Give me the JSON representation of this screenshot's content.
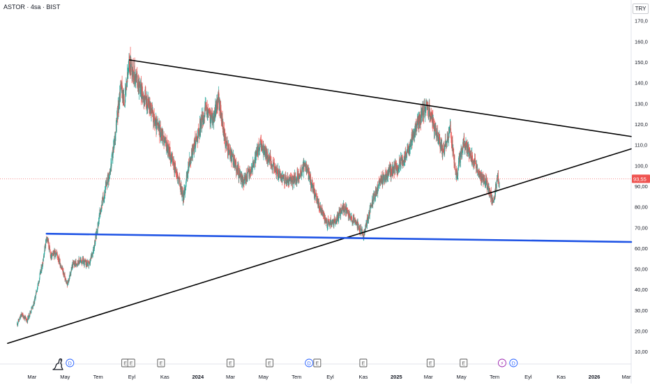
{
  "header": {
    "symbol_title": "ASTOR · 4sa · BIST",
    "currency": "TRY"
  },
  "colors": {
    "up": "#26a69a",
    "down": "#ef5350",
    "trendline": "#000000",
    "support": "#1e53e5",
    "last_price_bg": "#ef5350",
    "axis_text": "#131722",
    "event_E": "#555555",
    "event_D": "#2962ff",
    "event_split": "#9c27b0"
  },
  "chart_data": {
    "type": "candlestick",
    "title": "ASTOR · 4sa · BIST",
    "currency": "TRY",
    "ylim": [
      4,
      180
    ],
    "y_ticks": [
      10,
      20,
      30,
      40,
      50,
      60,
      70,
      80,
      90,
      100,
      110,
      120,
      130,
      140,
      150,
      160,
      170
    ],
    "y_tick_labels": [
      "10,00",
      "20,00",
      "30,00",
      "40,00",
      "50,00",
      "60,00",
      "70,00",
      "80,00",
      "90,00",
      "100,0",
      "110,0",
      "120,0",
      "130,0",
      "140,0",
      "150,0",
      "160,0",
      "170,0"
    ],
    "x_range": [
      "2023-01-01",
      "2026-03-10"
    ],
    "x_ticks": [
      {
        "date": "2023-03-01",
        "label": "Mar"
      },
      {
        "date": "2023-05-01",
        "label": "May"
      },
      {
        "date": "2023-07-01",
        "label": "Tem"
      },
      {
        "date": "2023-09-01",
        "label": "Eyl"
      },
      {
        "date": "2023-11-01",
        "label": "Kas"
      },
      {
        "date": "2024-01-01",
        "label": "2024"
      },
      {
        "date": "2024-03-01",
        "label": "Mar"
      },
      {
        "date": "2024-05-01",
        "label": "May"
      },
      {
        "date": "2024-07-01",
        "label": "Tem"
      },
      {
        "date": "2024-09-01",
        "label": "Eyl"
      },
      {
        "date": "2024-11-01",
        "label": "Kas"
      },
      {
        "date": "2025-01-01",
        "label": "2025"
      },
      {
        "date": "2025-03-01",
        "label": "Mar"
      },
      {
        "date": "2025-05-01",
        "label": "May"
      },
      {
        "date": "2025-07-01",
        "label": "Tem"
      },
      {
        "date": "2025-09-01",
        "label": "Eyl"
      },
      {
        "date": "2025-11-01",
        "label": "Kas"
      },
      {
        "date": "2026-01-01",
        "label": "2026"
      },
      {
        "date": "2026-03-01",
        "label": "Mar"
      }
    ],
    "price_path": [
      {
        "date": "2023-02-01",
        "price": 23
      },
      {
        "date": "2023-02-10",
        "price": 28
      },
      {
        "date": "2023-02-20",
        "price": 25
      },
      {
        "date": "2023-03-05",
        "price": 34
      },
      {
        "date": "2023-03-20",
        "price": 52
      },
      {
        "date": "2023-03-28",
        "price": 66
      },
      {
        "date": "2023-04-05",
        "price": 56
      },
      {
        "date": "2023-04-15",
        "price": 58
      },
      {
        "date": "2023-04-28",
        "price": 48
      },
      {
        "date": "2023-05-05",
        "price": 42
      },
      {
        "date": "2023-05-15",
        "price": 52
      },
      {
        "date": "2023-05-30",
        "price": 54
      },
      {
        "date": "2023-06-15",
        "price": 52
      },
      {
        "date": "2023-06-25",
        "price": 63
      },
      {
        "date": "2023-07-05",
        "price": 78
      },
      {
        "date": "2023-07-12",
        "price": 86
      },
      {
        "date": "2023-07-25",
        "price": 100
      },
      {
        "date": "2023-08-03",
        "price": 118
      },
      {
        "date": "2023-08-12",
        "price": 140
      },
      {
        "date": "2023-08-18",
        "price": 130
      },
      {
        "date": "2023-08-28",
        "price": 150
      },
      {
        "date": "2023-09-10",
        "price": 142
      },
      {
        "date": "2023-09-20",
        "price": 135
      },
      {
        "date": "2023-10-05",
        "price": 128
      },
      {
        "date": "2023-10-15",
        "price": 120
      },
      {
        "date": "2023-10-25",
        "price": 116
      },
      {
        "date": "2023-11-10",
        "price": 106
      },
      {
        "date": "2023-11-28",
        "price": 92
      },
      {
        "date": "2023-12-05",
        "price": 84
      },
      {
        "date": "2023-12-15",
        "price": 100
      },
      {
        "date": "2023-12-28",
        "price": 112
      },
      {
        "date": "2024-01-15",
        "price": 127
      },
      {
        "date": "2024-01-28",
        "price": 122
      },
      {
        "date": "2024-02-08",
        "price": 132
      },
      {
        "date": "2024-02-20",
        "price": 112
      },
      {
        "date": "2024-03-10",
        "price": 100
      },
      {
        "date": "2024-03-25",
        "price": 92
      },
      {
        "date": "2024-04-12",
        "price": 100
      },
      {
        "date": "2024-04-25",
        "price": 110
      },
      {
        "date": "2024-05-10",
        "price": 104
      },
      {
        "date": "2024-05-28",
        "price": 96
      },
      {
        "date": "2024-06-15",
        "price": 92
      },
      {
        "date": "2024-07-01",
        "price": 94
      },
      {
        "date": "2024-07-18",
        "price": 100
      },
      {
        "date": "2024-08-05",
        "price": 85
      },
      {
        "date": "2024-08-25",
        "price": 72
      },
      {
        "date": "2024-09-10",
        "price": 73
      },
      {
        "date": "2024-09-25",
        "price": 80
      },
      {
        "date": "2024-10-10",
        "price": 74
      },
      {
        "date": "2024-10-25",
        "price": 70
      },
      {
        "date": "2024-11-02",
        "price": 66
      },
      {
        "date": "2024-11-15",
        "price": 80
      },
      {
        "date": "2024-12-01",
        "price": 92
      },
      {
        "date": "2024-12-15",
        "price": 96
      },
      {
        "date": "2025-01-05",
        "price": 100
      },
      {
        "date": "2025-01-20",
        "price": 106
      },
      {
        "date": "2025-02-05",
        "price": 118
      },
      {
        "date": "2025-02-20",
        "price": 126
      },
      {
        "date": "2025-02-28",
        "price": 129
      },
      {
        "date": "2025-03-12",
        "price": 118
      },
      {
        "date": "2025-03-28",
        "price": 106
      },
      {
        "date": "2025-04-10",
        "price": 118
      },
      {
        "date": "2025-04-22",
        "price": 95
      },
      {
        "date": "2025-05-05",
        "price": 112
      },
      {
        "date": "2025-05-20",
        "price": 104
      },
      {
        "date": "2025-06-05",
        "price": 95
      },
      {
        "date": "2025-06-18",
        "price": 90
      },
      {
        "date": "2025-06-28",
        "price": 82
      },
      {
        "date": "2025-07-05",
        "price": 92
      },
      {
        "date": "2025-07-10",
        "price": 93.55
      }
    ],
    "last_price": 93.55,
    "last_price_label": "93,55",
    "drawings": [
      {
        "name": "upper-trendline",
        "color": "#000000",
        "points": [
          {
            "date": "2023-08-28",
            "price": 151
          },
          {
            "date": "2026-03-10",
            "price": 114
          }
        ]
      },
      {
        "name": "lower-trendline",
        "color": "#000000",
        "points": [
          {
            "date": "2023-01-15",
            "price": 14
          },
          {
            "date": "2026-03-10",
            "price": 108
          }
        ]
      },
      {
        "name": "horizontal-support",
        "color": "#1e53e5",
        "points": [
          {
            "date": "2023-03-28",
            "price": 67
          },
          {
            "date": "2026-03-10",
            "price": 63
          }
        ]
      }
    ],
    "events": [
      {
        "date": "2023-05-10",
        "label": "D",
        "kind": "dividend"
      },
      {
        "date": "2023-08-20",
        "label": "E",
        "kind": "earnings"
      },
      {
        "date": "2023-08-31",
        "label": "E",
        "kind": "earnings"
      },
      {
        "date": "2023-10-25",
        "label": "E",
        "kind": "earnings"
      },
      {
        "date": "2024-03-01",
        "label": "E",
        "kind": "earnings"
      },
      {
        "date": "2024-05-12",
        "label": "E",
        "kind": "earnings"
      },
      {
        "date": "2024-07-24",
        "label": "D",
        "kind": "dividend"
      },
      {
        "date": "2024-08-08",
        "label": "E",
        "kind": "earnings"
      },
      {
        "date": "2024-11-01",
        "label": "E",
        "kind": "earnings"
      },
      {
        "date": "2025-03-05",
        "label": "E",
        "kind": "earnings"
      },
      {
        "date": "2025-05-05",
        "label": "E",
        "kind": "earnings"
      },
      {
        "date": "2025-07-15",
        "label": "⚡",
        "kind": "split"
      },
      {
        "date": "2025-08-05",
        "label": "D",
        "kind": "dividend"
      }
    ]
  }
}
